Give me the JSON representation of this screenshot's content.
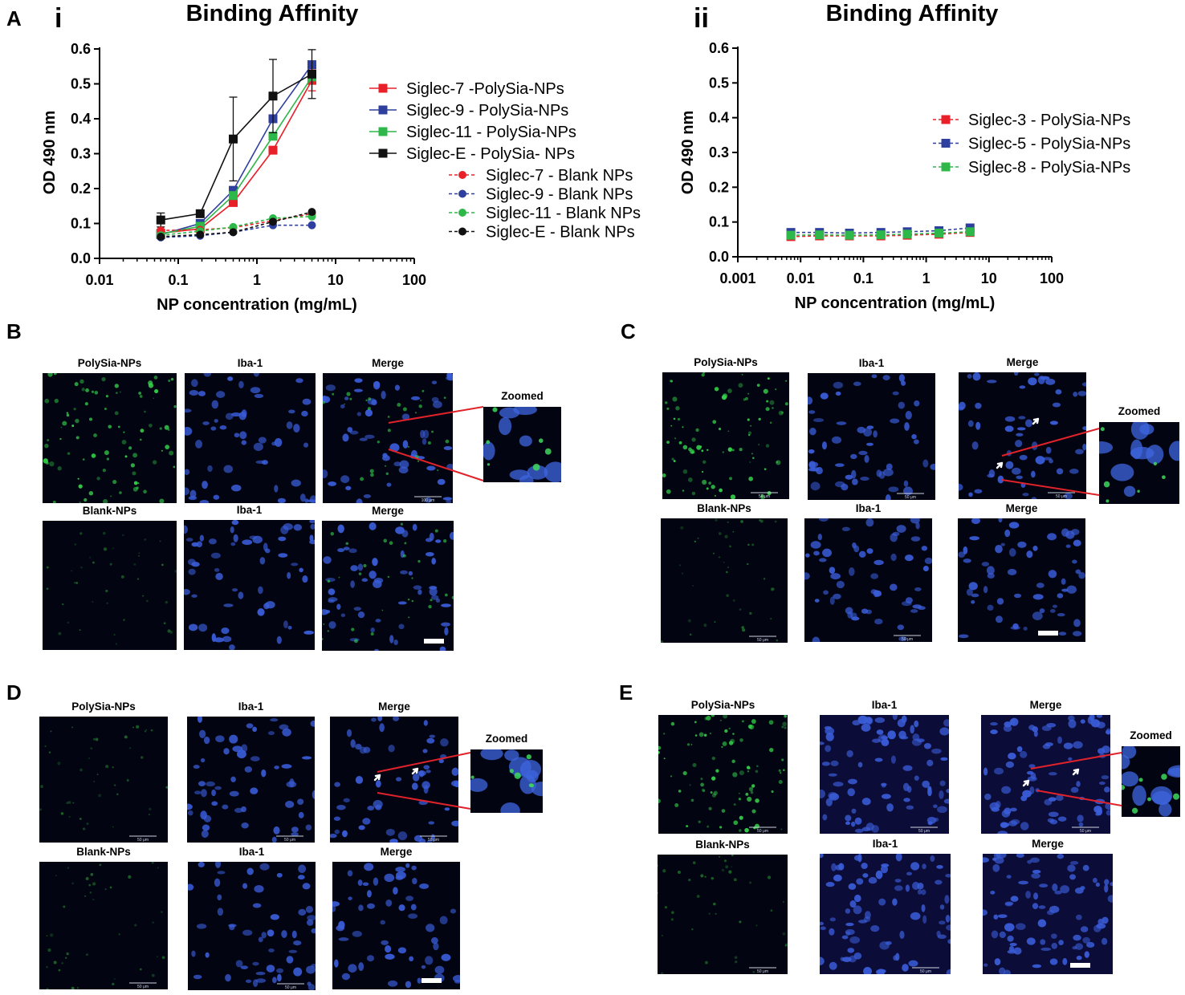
{
  "colors": {
    "siglec7": "#e8202a",
    "siglec9": "#2e3f9e",
    "siglec11": "#2fb84a",
    "siglecE": "#111111",
    "connector": "#e0222a"
  },
  "panel_letters": {
    "A": "A",
    "B": "B",
    "C": "C",
    "D": "D",
    "E": "E"
  },
  "subpanels": {
    "i": "i",
    "ii": "ii"
  },
  "chart_data": [
    {
      "id": "Ai",
      "type": "line",
      "title": "Binding Affinity",
      "xlabel": "NP concentration (mg/mL)",
      "ylabel": "OD 490 nm",
      "xscale": "log",
      "xlim": [
        0.01,
        100
      ],
      "ylim": [
        0.0,
        0.6
      ],
      "xticks": [
        0.01,
        0.1,
        1,
        10,
        100
      ],
      "xtick_labels": [
        "0.01",
        "0.1",
        "1",
        "10",
        "100"
      ],
      "yticks": [
        0.0,
        0.1,
        0.2,
        0.3,
        0.4,
        0.5,
        0.6
      ],
      "ytick_labels": [
        "0.0",
        "0.1",
        "0.2",
        "0.3",
        "0.4",
        "0.5",
        "0.6"
      ],
      "legend_position": "right",
      "series": [
        {
          "name": "Siglec-7 -PolySia-NPs",
          "color": "#e8202a",
          "marker": "square",
          "style": "solid",
          "x": [
            0.06,
            0.19,
            0.5,
            1.6,
            5
          ],
          "y": [
            0.072,
            0.085,
            0.16,
            0.31,
            0.51
          ],
          "err": [
            0,
            0,
            0,
            0,
            0.03
          ]
        },
        {
          "name": "Siglec-9 - PolySia-NPs",
          "color": "#2e3f9e",
          "marker": "square",
          "style": "solid",
          "x": [
            0.06,
            0.19,
            0.5,
            1.6,
            5
          ],
          "y": [
            0.068,
            0.1,
            0.195,
            0.4,
            0.555
          ],
          "err": [
            0,
            0,
            0,
            0,
            0
          ]
        },
        {
          "name": "Siglec-11 - PolySia-NPs",
          "color": "#2fb84a",
          "marker": "square",
          "style": "solid",
          "x": [
            0.06,
            0.19,
            0.5,
            1.6,
            5
          ],
          "y": [
            0.07,
            0.092,
            0.18,
            0.35,
            0.52
          ],
          "err": [
            0,
            0,
            0,
            0,
            0
          ]
        },
        {
          "name": "Siglec-E - PolySia- NPs",
          "color": "#111111",
          "marker": "square",
          "style": "solid",
          "x": [
            0.06,
            0.19,
            0.5,
            1.6,
            5
          ],
          "y": [
            0.11,
            0.128,
            0.342,
            0.465,
            0.528
          ],
          "err": [
            0.02,
            0,
            0.12,
            0.105,
            0.07
          ]
        },
        {
          "name": "Siglec-7 - Blank NPs",
          "color": "#e8202a",
          "marker": "circle",
          "style": "dashed",
          "x": [
            0.06,
            0.19,
            0.5,
            1.6,
            5
          ],
          "y": [
            0.08,
            0.082,
            0.088,
            0.108,
            0.128
          ],
          "err": [
            0,
            0,
            0,
            0,
            0
          ]
        },
        {
          "name": "Siglec-9 - Blank NPs",
          "color": "#2e3f9e",
          "marker": "circle",
          "style": "dashed",
          "x": [
            0.06,
            0.19,
            0.5,
            1.6,
            5
          ],
          "y": [
            0.06,
            0.065,
            0.075,
            0.095,
            0.095
          ],
          "err": [
            0,
            0,
            0,
            0,
            0
          ]
        },
        {
          "name": "Siglec-11 - Blank NPs",
          "color": "#2fb84a",
          "marker": "circle",
          "style": "dashed",
          "x": [
            0.06,
            0.19,
            0.5,
            1.6,
            5
          ],
          "y": [
            0.066,
            0.078,
            0.09,
            0.115,
            0.12
          ],
          "err": [
            0,
            0,
            0,
            0,
            0
          ]
        },
        {
          "name": "Siglec-E - Blank NPs",
          "color": "#111111",
          "marker": "circle",
          "style": "dashed",
          "x": [
            0.06,
            0.19,
            0.5,
            1.6,
            5
          ],
          "y": [
            0.062,
            0.068,
            0.075,
            0.105,
            0.133
          ],
          "err": [
            0,
            0,
            0,
            0,
            0
          ]
        }
      ]
    },
    {
      "id": "Aii",
      "type": "line",
      "title": "Binding Affinity",
      "xlabel": "NP concentration (mg/mL)",
      "ylabel": "OD 490 nm",
      "xscale": "log",
      "xlim": [
        0.001,
        100
      ],
      "ylim": [
        0.0,
        0.6
      ],
      "xticks": [
        0.001,
        0.01,
        0.1,
        1,
        10,
        100
      ],
      "xtick_labels": [
        "0.001",
        "0.01",
        "0.1",
        "1",
        "10",
        "100"
      ],
      "yticks": [
        0.0,
        0.1,
        0.2,
        0.3,
        0.4,
        0.5,
        0.6
      ],
      "ytick_labels": [
        "0.0",
        "0.1",
        "0.2",
        "0.3",
        "0.4",
        "0.5",
        "0.6"
      ],
      "legend_position": "right",
      "series": [
        {
          "name": "Siglec-3 - PolySia-NPs",
          "color": "#e8202a",
          "marker": "square",
          "style": "dashed",
          "x": [
            0.007,
            0.02,
            0.06,
            0.19,
            0.5,
            1.6,
            5
          ],
          "y": [
            0.058,
            0.06,
            0.06,
            0.06,
            0.062,
            0.065,
            0.07
          ],
          "err": [
            0,
            0,
            0,
            0,
            0,
            0,
            0
          ]
        },
        {
          "name": "Siglec-5 - PolySia-NPs",
          "color": "#2e3f9e",
          "marker": "square",
          "style": "dashed",
          "x": [
            0.007,
            0.02,
            0.06,
            0.19,
            0.5,
            1.6,
            5
          ],
          "y": [
            0.07,
            0.07,
            0.068,
            0.07,
            0.072,
            0.075,
            0.083
          ],
          "err": [
            0,
            0,
            0,
            0,
            0,
            0,
            0
          ]
        },
        {
          "name": "Siglec-8 - PolySia-NPs",
          "color": "#2fb84a",
          "marker": "square",
          "style": "dashed",
          "x": [
            0.007,
            0.02,
            0.06,
            0.19,
            0.5,
            1.6,
            5
          ],
          "y": [
            0.062,
            0.063,
            0.062,
            0.063,
            0.065,
            0.068,
            0.072
          ],
          "err": [
            0,
            0,
            0,
            0,
            0,
            0,
            0
          ]
        }
      ]
    }
  ],
  "image_labels": {
    "polysia": "PolySia-NPs",
    "blank": "Blank-NPs",
    "iba": "Iba-1",
    "merge": "Merge",
    "zoomed": "Zoomed"
  },
  "scale_bar_texts": {
    "um100": "100 μm",
    "um50": "50 μm"
  }
}
